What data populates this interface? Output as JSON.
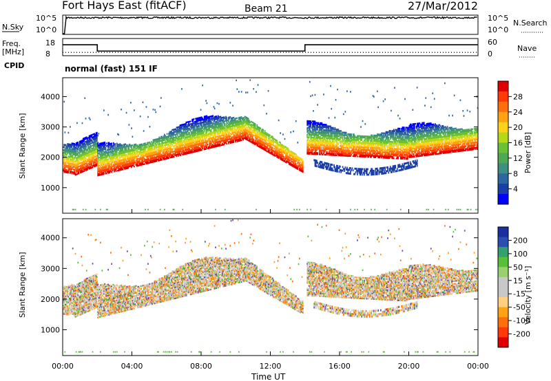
{
  "header": {
    "title": "Fort Hays East (fitACF)",
    "beam": "Beam 21",
    "date": "27/Mar/2012"
  },
  "chart_data": [
    {
      "type": "line",
      "name": "noise-panel",
      "left_label": "N.Sky",
      "right_label": "N.Search",
      "left_ticks": [
        "10^5",
        "10^0"
      ],
      "right_ticks": [
        "10^5",
        "10^0"
      ],
      "x_range": [
        0,
        24
      ],
      "y_scale": "log",
      "y_range": [
        1,
        100000
      ],
      "sky_level_x": [
        0,
        0.1,
        0.2,
        24
      ],
      "sky_level_y": [
        1,
        1,
        30000,
        30000
      ]
    },
    {
      "type": "line",
      "name": "freq-panel",
      "left_label": "Freq.",
      "left_unit": "[MHz]",
      "right_label": "Nave",
      "left_ticks": [
        "18",
        "8"
      ],
      "right_ticks": [
        "60",
        "0"
      ],
      "cpid_label": "CPID",
      "cpid_text": "normal (fast) 151 IF",
      "x_range": [
        0,
        24
      ],
      "freq_x": [
        0,
        2,
        2,
        14,
        14,
        24
      ],
      "freq_y": [
        14.5,
        14.5,
        10.5,
        10.5,
        14.5,
        14.5
      ],
      "nave_level": 10
    },
    {
      "type": "heatmap",
      "name": "power-panel",
      "ylabel": "Slant Range [km]",
      "y_ticks": [
        1000,
        2000,
        3000,
        4000
      ],
      "y_range": [
        180,
        4600
      ],
      "x_range": [
        0,
        24
      ],
      "colorbar_label": "Power [dB]",
      "colorbar_ticks": [
        "28",
        "24",
        "20",
        "16",
        "12",
        "8",
        "4"
      ],
      "colorbar_colors": [
        "#0000ff",
        "#1b3fa8",
        "#2e66a0",
        "#3f8e80",
        "#4fa854",
        "#6cc033",
        "#b6d81a",
        "#ffd21a",
        "#ffa214",
        "#ff6e0e",
        "#ff3a08",
        "#e00000"
      ]
    },
    {
      "type": "heatmap",
      "name": "velocity-panel",
      "ylabel": "Slant Range [km]",
      "y_ticks": [
        1000,
        2000,
        3000,
        4000
      ],
      "y_range": [
        180,
        4600
      ],
      "x_range": [
        0,
        24
      ],
      "xlabel": "Time UT",
      "x_ticks": [
        "00:00",
        "04:00",
        "08:00",
        "12:00",
        "16:00",
        "20:00",
        "00:00"
      ],
      "colorbar_label": "Velocity [m s⁻¹]",
      "colorbar_ticks": [
        "200",
        "100",
        "50",
        "15",
        "-15",
        "-50",
        "-100",
        "-200"
      ],
      "colorbar_colors": [
        "#e00000",
        "#ff3a08",
        "#ff6e0e",
        "#ffa214",
        "#ffd080",
        "#c8c8c8",
        "#c8c8c8",
        "#9ad070",
        "#58c038",
        "#34a070",
        "#2b4fb0",
        "#1b2fa0"
      ]
    }
  ]
}
